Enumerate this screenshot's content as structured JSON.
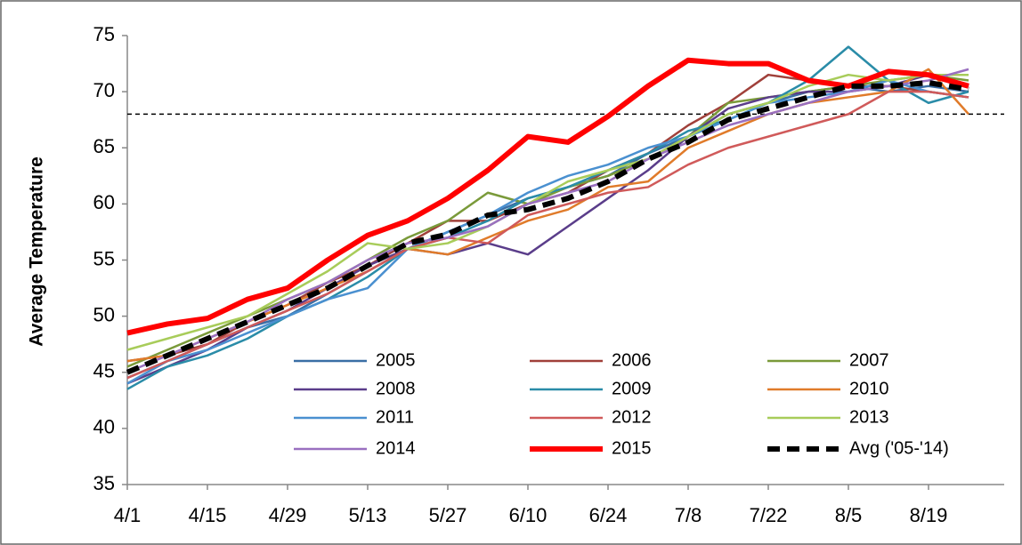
{
  "chart_data": {
    "type": "line",
    "y_label": "Average Temperature",
    "categories": [
      "4/1",
      null,
      "4/15",
      null,
      "4/29",
      null,
      "5/13",
      null,
      "5/27",
      null,
      "6/10",
      null,
      "6/24",
      null,
      "7/8",
      null,
      "7/22",
      null,
      "8/5",
      null,
      "8/19",
      null
    ],
    "ylim": [
      35,
      75
    ],
    "yticks": [
      35,
      40,
      45,
      50,
      55,
      60,
      65,
      70,
      75
    ],
    "reference_line": 68,
    "series": [
      {
        "name": "2005",
        "color": "#3a6ea5",
        "width": 2.5,
        "values": [
          44.5,
          46,
          47.5,
          49,
          50,
          52,
          54,
          56,
          57.5,
          59,
          60.5,
          61.5,
          62.5,
          64.5,
          66,
          68,
          69,
          70,
          70.5,
          70,
          70.5,
          70
        ]
      },
      {
        "name": "2006",
        "color": "#a0403a",
        "width": 2.5,
        "values": [
          46,
          46.5,
          47.5,
          49.5,
          51,
          53,
          54.5,
          56.5,
          58.5,
          58.5,
          60,
          61,
          63,
          64.5,
          67,
          69,
          71.5,
          71,
          70.5,
          70.5,
          70,
          69.5
        ]
      },
      {
        "name": "2007",
        "color": "#7a9a3a",
        "width": 2.5,
        "values": [
          45.5,
          47,
          48.5,
          50,
          51.5,
          53,
          55,
          57,
          58.5,
          61,
          60,
          61.5,
          62.5,
          64,
          66,
          69,
          69.5,
          70,
          70.5,
          71,
          71.5,
          71
        ]
      },
      {
        "name": "2008",
        "color": "#5a3d8a",
        "width": 2.5,
        "values": [
          44,
          45.5,
          47,
          49,
          50.5,
          52.5,
          54.5,
          56,
          55.5,
          56.5,
          55.5,
          58,
          60.5,
          63,
          66,
          68.5,
          69.5,
          70,
          70,
          70.5,
          71.5,
          70.5
        ]
      },
      {
        "name": "2009",
        "color": "#2a8ca8",
        "width": 2.5,
        "values": [
          43.5,
          45.5,
          46.5,
          48,
          50,
          51.5,
          53.5,
          56,
          57,
          58.5,
          60.5,
          61.5,
          63,
          64.5,
          66.5,
          67.5,
          69,
          71,
          74,
          71,
          69,
          70
        ]
      },
      {
        "name": "2010",
        "color": "#e07b2a",
        "width": 2.5,
        "values": [
          46,
          46.5,
          48,
          49.5,
          51,
          52.5,
          54,
          56,
          55.5,
          57,
          58.5,
          59.5,
          61.5,
          62,
          65,
          66.5,
          68,
          69,
          69.5,
          70,
          72,
          68
        ]
      },
      {
        "name": "2011",
        "color": "#4a90d0",
        "width": 2.5,
        "values": [
          44,
          46,
          47,
          48.5,
          50,
          51.5,
          52.5,
          56,
          57.5,
          59,
          61,
          62.5,
          63.5,
          65,
          66,
          67.5,
          69,
          69.5,
          70,
          71,
          70,
          69.5
        ]
      },
      {
        "name": "2012",
        "color": "#d05a5a",
        "width": 2.5,
        "values": [
          44.5,
          46,
          47.5,
          49,
          50.5,
          52,
          54,
          56,
          57,
          56.5,
          59,
          60,
          61,
          61.5,
          63.5,
          65,
          66,
          67,
          68,
          70,
          70,
          69.5
        ]
      },
      {
        "name": "2013",
        "color": "#a8cc5a",
        "width": 2.5,
        "values": [
          47,
          48,
          49,
          50,
          52,
          54,
          56.5,
          56,
          56.5,
          58,
          60,
          62,
          63,
          64,
          66,
          68,
          69,
          70.5,
          71.5,
          71,
          71.5,
          71.5
        ]
      },
      {
        "name": "2014",
        "color": "#9a70c0",
        "width": 2.5,
        "values": [
          45,
          46.5,
          48,
          49.5,
          51.5,
          53,
          55,
          56.5,
          57,
          58,
          60,
          61,
          62,
          64,
          65.5,
          67,
          68,
          69,
          70,
          70.5,
          71,
          72
        ]
      },
      {
        "name": "2015",
        "color": "#ff0000",
        "width": 6,
        "values": [
          48.5,
          49.3,
          49.8,
          51.5,
          52.5,
          55,
          57.2,
          58.5,
          60.5,
          63,
          66,
          65.5,
          67.8,
          70.5,
          72.8,
          72.5,
          72.5,
          71,
          70.5,
          71.8,
          71.5,
          70.5
        ]
      },
      {
        "name": "Avg ('05-'14)",
        "color": "#000000",
        "width": 6,
        "dashed": true,
        "values": [
          45,
          46.5,
          48,
          49.5,
          51,
          52.5,
          54.5,
          56.5,
          57.3,
          59,
          59.5,
          60.5,
          62,
          64,
          65.5,
          67.5,
          68.5,
          69.5,
          70.5,
          70.5,
          70.8,
          70.2
        ]
      }
    ]
  }
}
